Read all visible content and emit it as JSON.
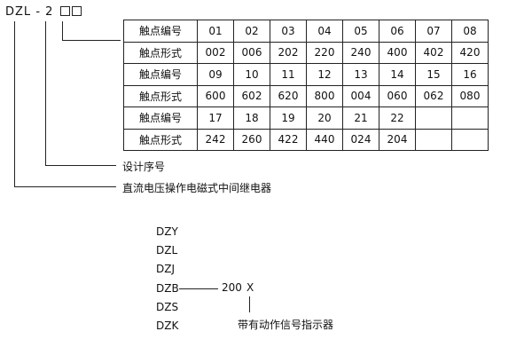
{
  "model_code": {
    "prefix": "DZL",
    "dash": "-",
    "digit": "2"
  },
  "table": {
    "rows": [
      {
        "label": "触点编号",
        "cells": [
          "01",
          "02",
          "03",
          "04",
          "05",
          "06",
          "07",
          "08"
        ]
      },
      {
        "label": "触点形式",
        "cells": [
          "002",
          "006",
          "202",
          "220",
          "240",
          "400",
          "402",
          "420"
        ]
      },
      {
        "label": "触点编号",
        "cells": [
          "09",
          "10",
          "11",
          "12",
          "13",
          "14",
          "15",
          "16"
        ]
      },
      {
        "label": "触点形式",
        "cells": [
          "600",
          "602",
          "620",
          "800",
          "004",
          "060",
          "062",
          "080"
        ]
      },
      {
        "label": "触点编号",
        "cells": [
          "17",
          "18",
          "19",
          "20",
          "21",
          "22",
          "",
          ""
        ]
      },
      {
        "label": "触点形式",
        "cells": [
          "242",
          "260",
          "422",
          "440",
          "024",
          "204",
          "",
          ""
        ]
      }
    ]
  },
  "labels": {
    "design_no": "设计序号",
    "relay_type": "直流电压操作电磁式中间继电器"
  },
  "series_list": [
    "DZY",
    "DZL",
    "DZJ",
    "DZB",
    "DZS",
    "DZK"
  ],
  "dzb_suffix": {
    "number": "200",
    "letter": "X",
    "note": "带有动作信号指示器"
  }
}
